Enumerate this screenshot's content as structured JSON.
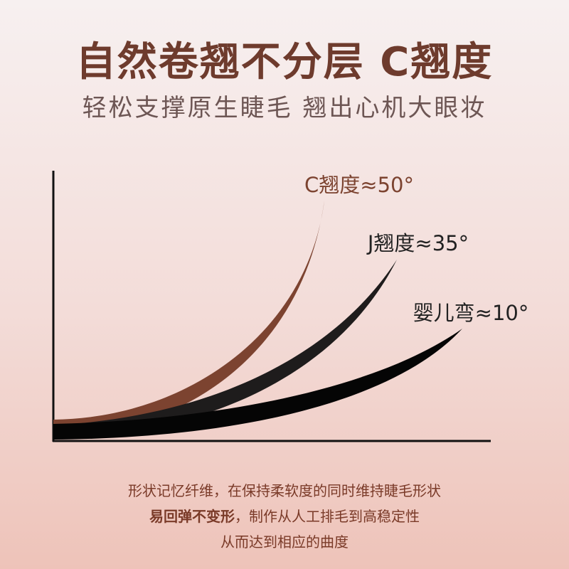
{
  "header": {
    "title": "自然卷翘不分层 C翘度",
    "subtitle": "轻松支撑原生睫毛 翘出心机大眼妆"
  },
  "curves": [
    {
      "label": "C翘度≈50°"
    },
    {
      "label": "J翘度≈35°"
    },
    {
      "label": "婴儿弯≈10°"
    }
  ],
  "description": {
    "line1": "形状记忆纤维，在保持柔软度的同时维持睫毛形状",
    "line2_bold": "易回弹不变形",
    "line2_rest": "，制作从人工排毛到高稳定性",
    "line3": "从而达到相应的曲度"
  }
}
